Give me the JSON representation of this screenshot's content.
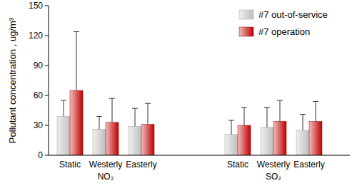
{
  "chart_data": {
    "type": "bar",
    "y_label": "Pollutant concentration , ug/m³",
    "categories": [
      "Static",
      "Westerly",
      "Easterly",
      "Static",
      "Westerly",
      "Easterly"
    ],
    "groups": [
      {
        "name": "NO₂",
        "size": 3
      },
      {
        "name": "SO₂",
        "size": 3
      }
    ],
    "series": [
      {
        "name": "#7 out-of-service",
        "color": "#bfbfbf",
        "values": [
          39,
          26,
          29,
          21,
          28,
          25
        ],
        "errors": [
          16,
          13,
          18,
          14,
          20,
          16
        ]
      },
      {
        "name": "#7 operation",
        "color": "#c00000",
        "values": [
          65,
          33,
          31,
          30,
          34,
          34
        ],
        "errors": [
          59,
          24,
          21,
          18,
          21,
          20
        ]
      }
    ],
    "ylim": [
      0,
      150
    ],
    "yticks": [
      0,
      30,
      60,
      90,
      120,
      150
    ],
    "grid": false,
    "legend": "top-right"
  }
}
